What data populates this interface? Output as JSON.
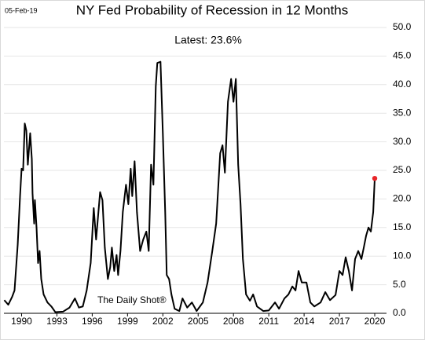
{
  "chart_data": {
    "type": "line",
    "date": "05-Feb-19",
    "title": "NY Fed Probability of Recession in 12 Months",
    "annotation": "Latest:  23.6%",
    "source": "The Daily Shot®",
    "color": "#000000",
    "last_point_color": "#e8262a",
    "grid": true,
    "xlim": [
      1988.5,
      2021
    ],
    "xticks": [
      1990,
      1993,
      1996,
      1999,
      2002,
      2005,
      2008,
      2011,
      2014,
      2017,
      2020
    ],
    "ylim": [
      0,
      50
    ],
    "yticks": [
      {
        "value": 0,
        "label": "0.0"
      },
      {
        "value": 5,
        "label": "5.0"
      },
      {
        "value": 10,
        "label": "10.0"
      },
      {
        "value": 15,
        "label": "15.0"
      },
      {
        "value": 20,
        "label": "20.0"
      },
      {
        "value": 25,
        "label": "25.0"
      },
      {
        "value": 30,
        "label": "30.0"
      },
      {
        "value": 35,
        "label": "35.0"
      },
      {
        "value": 40,
        "label": "40.0"
      },
      {
        "value": 45,
        "label": "45.0"
      },
      {
        "value": 50,
        "label": "50.0"
      }
    ],
    "x": [
      1988.53,
      1988.87,
      1989.2,
      1989.4,
      1989.67,
      1989.87,
      1990,
      1990.13,
      1990.27,
      1990.4,
      1990.53,
      1990.73,
      1990.87,
      1990.93,
      1991.07,
      1991.13,
      1991.27,
      1991.4,
      1991.53,
      1991.67,
      1991.87,
      1992.2,
      1992.53,
      1992.87,
      1993.53,
      1994.07,
      1994.53,
      1994.87,
      1995.2,
      1995.53,
      1995.87,
      1996.13,
      1996.33,
      1996.67,
      1996.87,
      1997.07,
      1997.33,
      1997.53,
      1997.67,
      1997.87,
      1998.07,
      1998.2,
      1998.4,
      1998.6,
      1998.87,
      1999.07,
      1999.27,
      1999.4,
      1999.6,
      1999.8,
      2000.07,
      2000.33,
      2000.6,
      2000.8,
      2001,
      2001.2,
      2001.4,
      2001.53,
      2001.8,
      2002,
      2002.2,
      2002.33,
      2002.53,
      2002.73,
      2003,
      2003.4,
      2003.67,
      2004.07,
      2004.47,
      2004.87,
      2005.4,
      2005.8,
      2006.2,
      2006.53,
      2006.87,
      2007.07,
      2007.27,
      2007.53,
      2007.8,
      2008,
      2008.2,
      2008.4,
      2008.6,
      2008.8,
      2009.07,
      2009.4,
      2009.67,
      2010,
      2010.53,
      2011,
      2011.53,
      2011.87,
      2012.33,
      2012.67,
      2013,
      2013.27,
      2013.53,
      2013.8,
      2014.2,
      2014.53,
      2014.87,
      2015.4,
      2015.8,
      2016.2,
      2016.67,
      2017,
      2017.27,
      2017.53,
      2017.8,
      2018.07,
      2018.33,
      2018.6,
      2018.87,
      2019.07,
      2019.27,
      2019.47,
      2019.67,
      2019.87,
      2020
    ],
    "values": [
      2.3,
      1.5,
      2.9,
      4,
      12,
      20.5,
      25.3,
      25,
      33.2,
      32,
      26,
      31.5,
      27,
      21,
      15.7,
      19.8,
      15,
      8.8,
      10.9,
      6,
      3.3,
      1.9,
      1.2,
      0.2,
      0.3,
      1,
      2.6,
      1,
      1.2,
      4,
      8.8,
      18.4,
      12.9,
      21.2,
      19.8,
      11.5,
      6,
      8.1,
      11.5,
      7.4,
      10.2,
      6.7,
      10.9,
      17.7,
      22.5,
      19.1,
      25.3,
      20.5,
      26.6,
      17.7,
      10.9,
      12.9,
      14.3,
      10.9,
      26,
      22.5,
      39.7,
      43.8,
      44,
      31.5,
      17.7,
      6.7,
      6,
      3.3,
      0.8,
      0.4,
      2.6,
      1,
      1.9,
      0.4,
      1.9,
      5.4,
      10.9,
      15.7,
      28,
      29.4,
      24.6,
      37,
      41,
      37,
      41,
      26,
      19.1,
      9.5,
      3.3,
      2.2,
      3.3,
      1.2,
      0.4,
      0.5,
      1.9,
      0.8,
      2.6,
      3.3,
      4.7,
      4,
      7.4,
      5.4,
      5.4,
      1.9,
      1.2,
      1.9,
      3.7,
      2.3,
      3.2,
      7.4,
      6.7,
      9.8,
      7.4,
      4,
      9.5,
      10.9,
      9.5,
      11.5,
      13.6,
      15,
      14.3,
      17.7,
      23.6
    ]
  }
}
